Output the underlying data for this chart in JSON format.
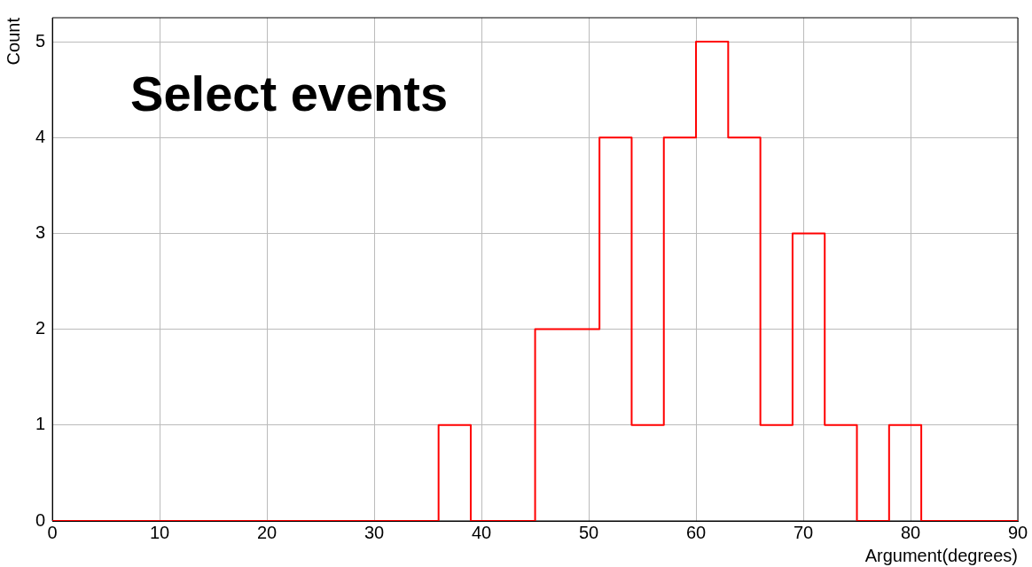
{
  "chart_data": {
    "type": "histogram",
    "title": "Select events",
    "xlabel": "Argument(degrees)",
    "ylabel": "Count",
    "bins": [
      0,
      3,
      6,
      9,
      12,
      15,
      18,
      21,
      24,
      27,
      30,
      33,
      36,
      39,
      42,
      45,
      48,
      51,
      54,
      57,
      60,
      63,
      66,
      69,
      72,
      75,
      78,
      81,
      84,
      87,
      90
    ],
    "values": [
      0,
      0,
      0,
      0,
      0,
      0,
      0,
      0,
      0,
      0,
      0,
      0,
      1,
      0,
      0,
      2,
      2,
      4,
      1,
      4,
      5,
      4,
      1,
      3,
      1,
      0,
      1,
      0,
      0,
      0
    ],
    "color": "#ff0000",
    "xlim": [
      0,
      90
    ],
    "xticks": [
      0,
      10,
      20,
      30,
      40,
      50,
      60,
      70,
      80,
      90
    ],
    "ylim": [
      0,
      5.25
    ],
    "yticks": [
      0,
      1,
      2,
      3,
      4,
      5
    ],
    "grid": true
  }
}
